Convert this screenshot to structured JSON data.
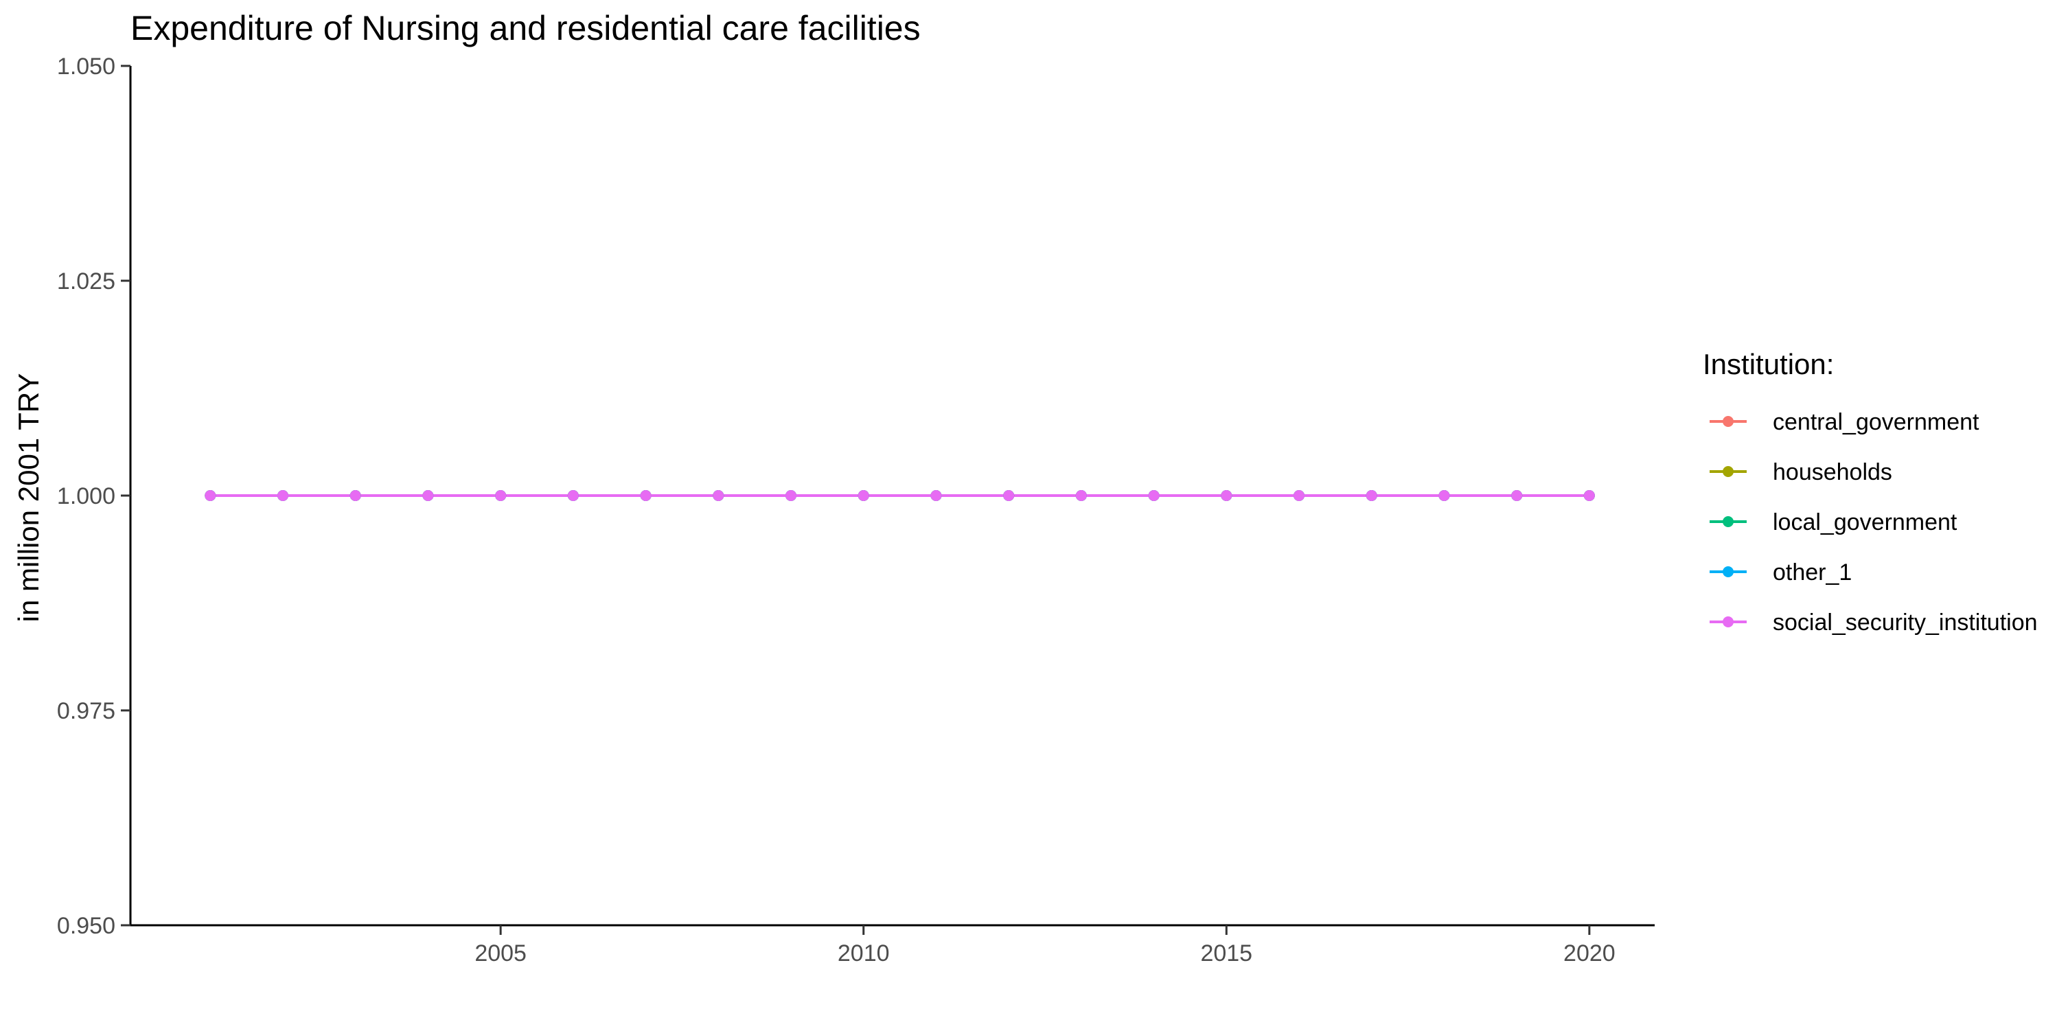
{
  "chart_data": {
    "type": "line",
    "title": "Expenditure of Nursing and residential care facilities",
    "xlabel": "",
    "ylabel": "in million 2001 TRY",
    "x": [
      2001,
      2002,
      2003,
      2004,
      2005,
      2006,
      2007,
      2008,
      2009,
      2010,
      2011,
      2012,
      2013,
      2014,
      2015,
      2016,
      2017,
      2018,
      2019,
      2020
    ],
    "xlim": [
      1999.9,
      2020.9
    ],
    "ylim": [
      0.95,
      1.05
    ],
    "x_ticks": [
      2005,
      2010,
      2015,
      2020
    ],
    "x_tick_labels": [
      "2005",
      "2010",
      "2015",
      "2020"
    ],
    "y_ticks": [
      0.95,
      0.975,
      1.0,
      1.025,
      1.05
    ],
    "y_tick_labels": [
      "0.950",
      "0.975",
      "1.000",
      "1.025",
      "1.050"
    ],
    "grid": false,
    "legend": {
      "title": "Institution:",
      "position": "right"
    },
    "series": [
      {
        "name": "central_government",
        "color": "#F8766D",
        "values": [
          1,
          1,
          1,
          1,
          1,
          1,
          1,
          1,
          1,
          1,
          1,
          1,
          1,
          1,
          1,
          1,
          1,
          1,
          1,
          1
        ]
      },
      {
        "name": "households",
        "color": "#A3A500",
        "values": [
          1,
          1,
          1,
          1,
          1,
          1,
          1,
          1,
          1,
          1,
          1,
          1,
          1,
          1,
          1,
          1,
          1,
          1,
          1,
          1
        ]
      },
      {
        "name": "local_government",
        "color": "#00BF7D",
        "values": [
          1,
          1,
          1,
          1,
          1,
          1,
          1,
          1,
          1,
          1,
          1,
          1,
          1,
          1,
          1,
          1,
          1,
          1,
          1,
          1
        ]
      },
      {
        "name": "other_1",
        "color": "#00B0F6",
        "values": [
          1,
          1,
          1,
          1,
          1,
          1,
          1,
          1,
          1,
          1,
          1,
          1,
          1,
          1,
          1,
          1,
          1,
          1,
          1,
          1
        ]
      },
      {
        "name": "social_security_institution",
        "color": "#E76BF3",
        "values": [
          1,
          1,
          1,
          1,
          1,
          1,
          1,
          1,
          1,
          1,
          1,
          1,
          1,
          1,
          1,
          1,
          1,
          1,
          1,
          1
        ]
      }
    ]
  }
}
